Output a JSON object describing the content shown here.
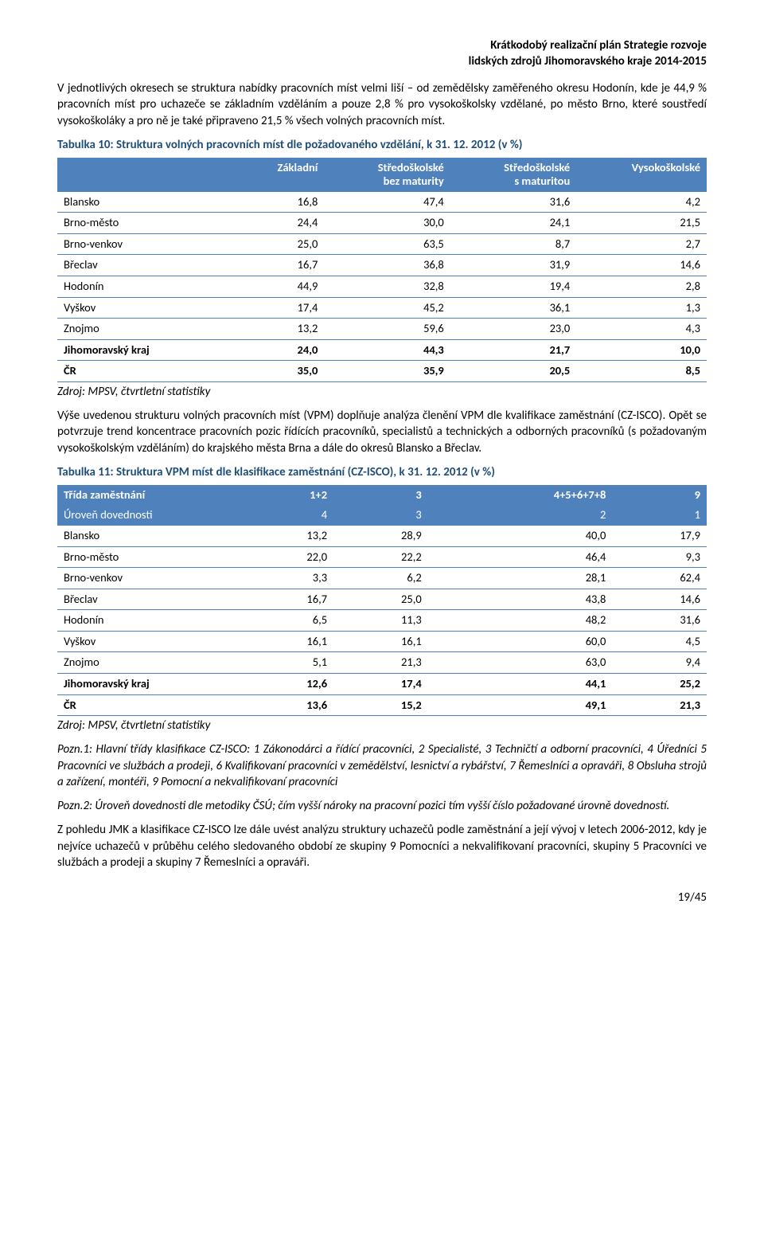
{
  "header": {
    "line1": "Krátkodobý realizační plán Strategie rozvoje",
    "line2": "lidských zdrojů Jihomoravského kraje 2014-2015"
  },
  "intro_para": "V jednotlivých okresech se struktura nabídky pracovních míst velmi liší – od zemědělsky zaměřeného okresu Hodonín, kde je 44,9 % pracovních míst pro uchazeče se základním vzděláním a pouze 2,8 % pro vysokoškolsky vzdělané, po město Brno, které soustředí vysokoškoláky a pro ně je také připraveno 21,5 % všech volných pracovních míst.",
  "table10": {
    "title": "Tabulka 10: Struktura volných pracovních míst dle požadovaného vzdělání, k 31. 12. 2012 (v %)",
    "title_color": "#1f4e79",
    "header_bg": "#4f81bd",
    "header_fg": "#ffffff",
    "border_color": "#4f81bd",
    "columns": [
      "",
      "Základní",
      "Středoškolské\nbez maturity",
      "Středoškolské\ns maturitou",
      "Vysokoškolské"
    ],
    "rows": [
      {
        "label": "Blansko",
        "vals": [
          "16,8",
          "47,4",
          "31,6",
          "4,2"
        ],
        "bold": false
      },
      {
        "label": "Brno-město",
        "vals": [
          "24,4",
          "30,0",
          "24,1",
          "21,5"
        ],
        "bold": false
      },
      {
        "label": "Brno-venkov",
        "vals": [
          "25,0",
          "63,5",
          "8,7",
          "2,7"
        ],
        "bold": false
      },
      {
        "label": "Břeclav",
        "vals": [
          "16,7",
          "36,8",
          "31,9",
          "14,6"
        ],
        "bold": false
      },
      {
        "label": "Hodonín",
        "vals": [
          "44,9",
          "32,8",
          "19,4",
          "2,8"
        ],
        "bold": false
      },
      {
        "label": "Vyškov",
        "vals": [
          "17,4",
          "45,2",
          "36,1",
          "1,3"
        ],
        "bold": false
      },
      {
        "label": "Znojmo",
        "vals": [
          "13,2",
          "59,6",
          "23,0",
          "4,3"
        ],
        "bold": false
      },
      {
        "label": "Jihomoravský kraj",
        "vals": [
          "24,0",
          "44,3",
          "21,7",
          "10,0"
        ],
        "bold": true
      },
      {
        "label": "ČR",
        "vals": [
          "35,0",
          "35,9",
          "20,5",
          "8,5"
        ],
        "bold": true
      }
    ],
    "source": "Zdroj: MPSV, čtvrtletní statistiky"
  },
  "mid_para": "Výše uvedenou strukturu volných pracovních míst (VPM) doplňuje analýza členění VPM dle kvalifikace zaměstnání (CZ-ISCO). Opět se potvrzuje trend koncentrace pracovních pozic řídících pracovníků, specialistů a technických a odborných pracovníků (s požadovaným vysokoškolským vzděláním) do krajského města Brna a dále do okresů Blansko a Břeclav.",
  "table11": {
    "title": "Tabulka 11: Struktura VPM míst dle klasifikace zaměstnání (CZ-ISCO), k 31. 12. 2012 (v %)",
    "title_color": "#1f4e79",
    "header_bg": "#4f81bd",
    "header_fg": "#ffffff",
    "border_color": "#4f81bd",
    "header_row": {
      "label": "Třída zaměstnání",
      "vals": [
        "1+2",
        "3",
        "4+5+6+7+8",
        "9"
      ]
    },
    "sub_row": {
      "label": "Úroveň dovednosti",
      "vals": [
        "4",
        "3",
        "2",
        "1"
      ]
    },
    "rows": [
      {
        "label": "Blansko",
        "vals": [
          "13,2",
          "28,9",
          "40,0",
          "17,9"
        ],
        "bold": false
      },
      {
        "label": "Brno-město",
        "vals": [
          "22,0",
          "22,2",
          "46,4",
          "9,3"
        ],
        "bold": false
      },
      {
        "label": "Brno-venkov",
        "vals": [
          "3,3",
          "6,2",
          "28,1",
          "62,4"
        ],
        "bold": false
      },
      {
        "label": "Břeclav",
        "vals": [
          "16,7",
          "25,0",
          "43,8",
          "14,6"
        ],
        "bold": false
      },
      {
        "label": "Hodonín",
        "vals": [
          "6,5",
          "11,3",
          "48,2",
          "31,6"
        ],
        "bold": false
      },
      {
        "label": "Vyškov",
        "vals": [
          "16,1",
          "16,1",
          "60,0",
          "4,5"
        ],
        "bold": false
      },
      {
        "label": "Znojmo",
        "vals": [
          "5,1",
          "21,3",
          "63,0",
          "9,4"
        ],
        "bold": false
      },
      {
        "label": "Jihomoravský kraj",
        "vals": [
          "12,6",
          "17,4",
          "44,1",
          "25,2"
        ],
        "bold": true
      },
      {
        "label": "ČR",
        "vals": [
          "13,6",
          "15,2",
          "49,1",
          "21,3"
        ],
        "bold": true
      }
    ],
    "source": "Zdroj: MPSV, čtvrtletní statistiky",
    "note1": "Pozn.1: Hlavní třídy klasifikace CZ-ISCO: 1 Zákonodárci a řídící pracovníci, 2 Specialisté, 3 Techničtí a odborní pracovníci, 4 Úředníci 5 Pracovníci ve službách a prodeji, 6 Kvalifikovaní pracovníci v zemědělství, lesnictví a rybářství, 7 Řemeslníci a opraváři, 8 Obsluha strojů a zařízení, montéři, 9 Pomocní a nekvalifikovaní pracovníci",
    "note2": "Pozn.2: Úroveň dovednosti dle metodiky ČSÚ; čím vyšší nároky na pracovní pozici tím vyšší číslo požadované úrovně dovedností."
  },
  "closing_para": "Z pohledu JMK a klasifikace CZ-ISCO lze dále uvést analýzu struktury uchazečů podle zaměstnání a její vývoj v letech 2006-2012, kdy je nejvíce uchazečů v průběhu celého sledovaného období ze skupiny 9 Pomocníci a nekvalifikovaní pracovníci, skupiny 5 Pracovníci ve službách a prodeji a skupiny 7 Řemeslníci a opraváři.",
  "footer": {
    "page": "19/45"
  }
}
